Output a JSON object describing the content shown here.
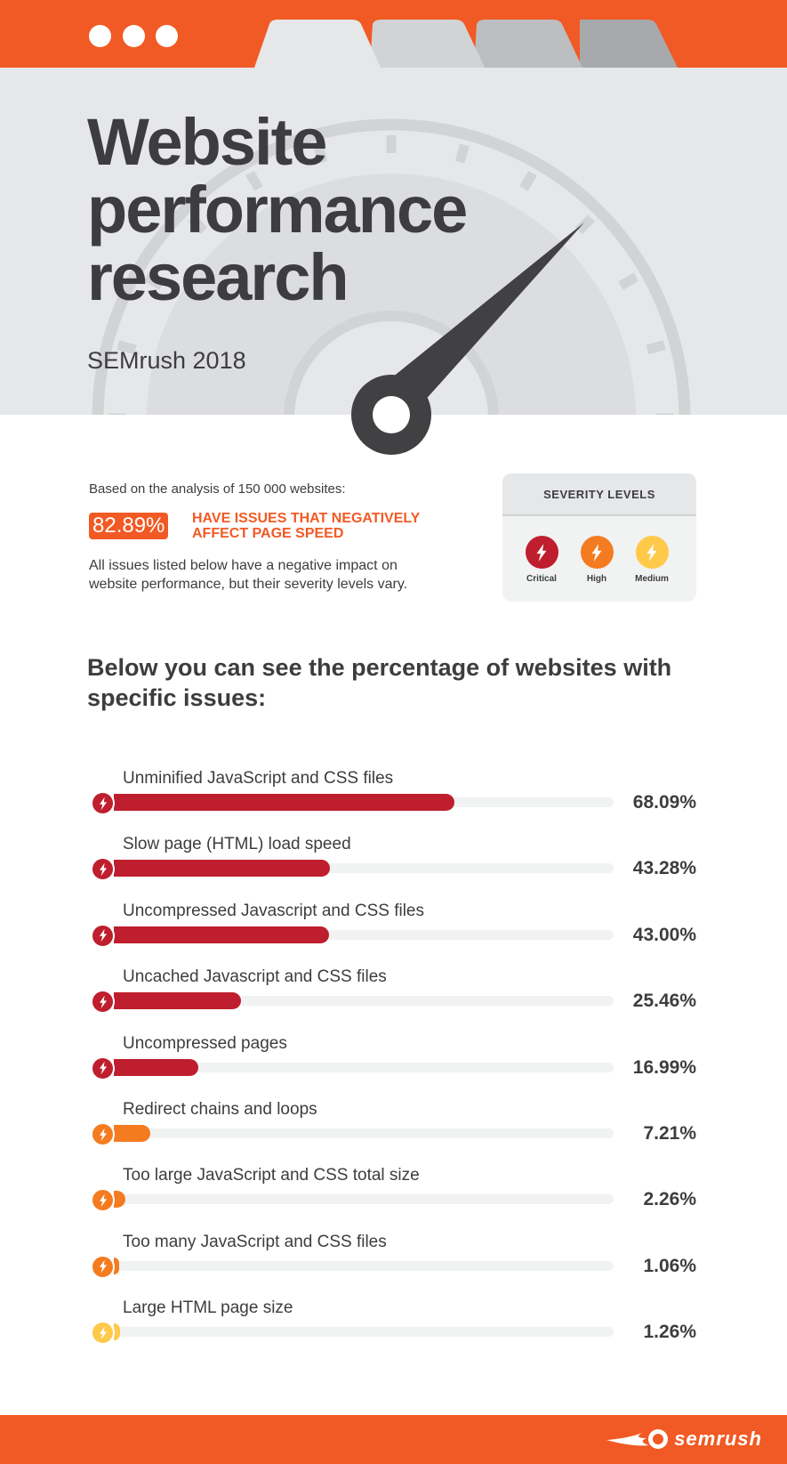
{
  "header": {
    "window_dots": 3,
    "tabs": 4,
    "tab_colors": [
      "#e6e7e8",
      "#d1d3d4",
      "#bcbec0",
      "#a7a9ac"
    ]
  },
  "hero": {
    "title": "Website performance research",
    "subtitle": "SEMrush 2018"
  },
  "intro": {
    "analysis": "Based on the analysis of 150 000 websites:",
    "highlight_value": "82.89%",
    "highlight_text": "HAVE ISSUES THAT NEGATIVELY AFFECT PAGE SPEED",
    "note": "All issues listed below have a negative impact on website performance, but their severity levels vary."
  },
  "severity": {
    "title": "SEVERITY LEVELS",
    "levels": [
      {
        "label": "Critical",
        "color": "#be1e2d",
        "icon": "lightning-icon"
      },
      {
        "label": "High",
        "color": "#f47b20",
        "icon": "lightning-icon"
      },
      {
        "label": "Medium",
        "color": "#ffc94a",
        "icon": "lightning-icon"
      }
    ]
  },
  "heading": "Below you can see the percentage of websites with specific issues:",
  "chart_data": {
    "type": "bar",
    "orientation": "horizontal",
    "xlim": [
      0,
      100
    ],
    "categories": [
      "Unminified JavaScript and CSS files",
      "Slow page (HTML) load speed",
      "Uncompressed Javascript and CSS files",
      "Uncached Javascript and CSS files",
      "Uncompressed pages",
      "Redirect chains and loops",
      "Too large JavaScript and CSS total size",
      "Too many JavaScript and CSS files",
      "Large HTML page size"
    ],
    "values": [
      68.09,
      43.28,
      43.0,
      25.46,
      16.99,
      7.21,
      2.26,
      1.06,
      1.26
    ],
    "value_labels": [
      "68.09%",
      "43.28%",
      "43.00%",
      "25.46%",
      "16.99%",
      "7.21%",
      "2.26%",
      "1.06%",
      "1.26%"
    ],
    "severity": [
      "Critical",
      "Critical",
      "Critical",
      "Critical",
      "Critical",
      "High",
      "High",
      "High",
      "Medium"
    ]
  },
  "footer": {
    "logo": "semrush"
  }
}
